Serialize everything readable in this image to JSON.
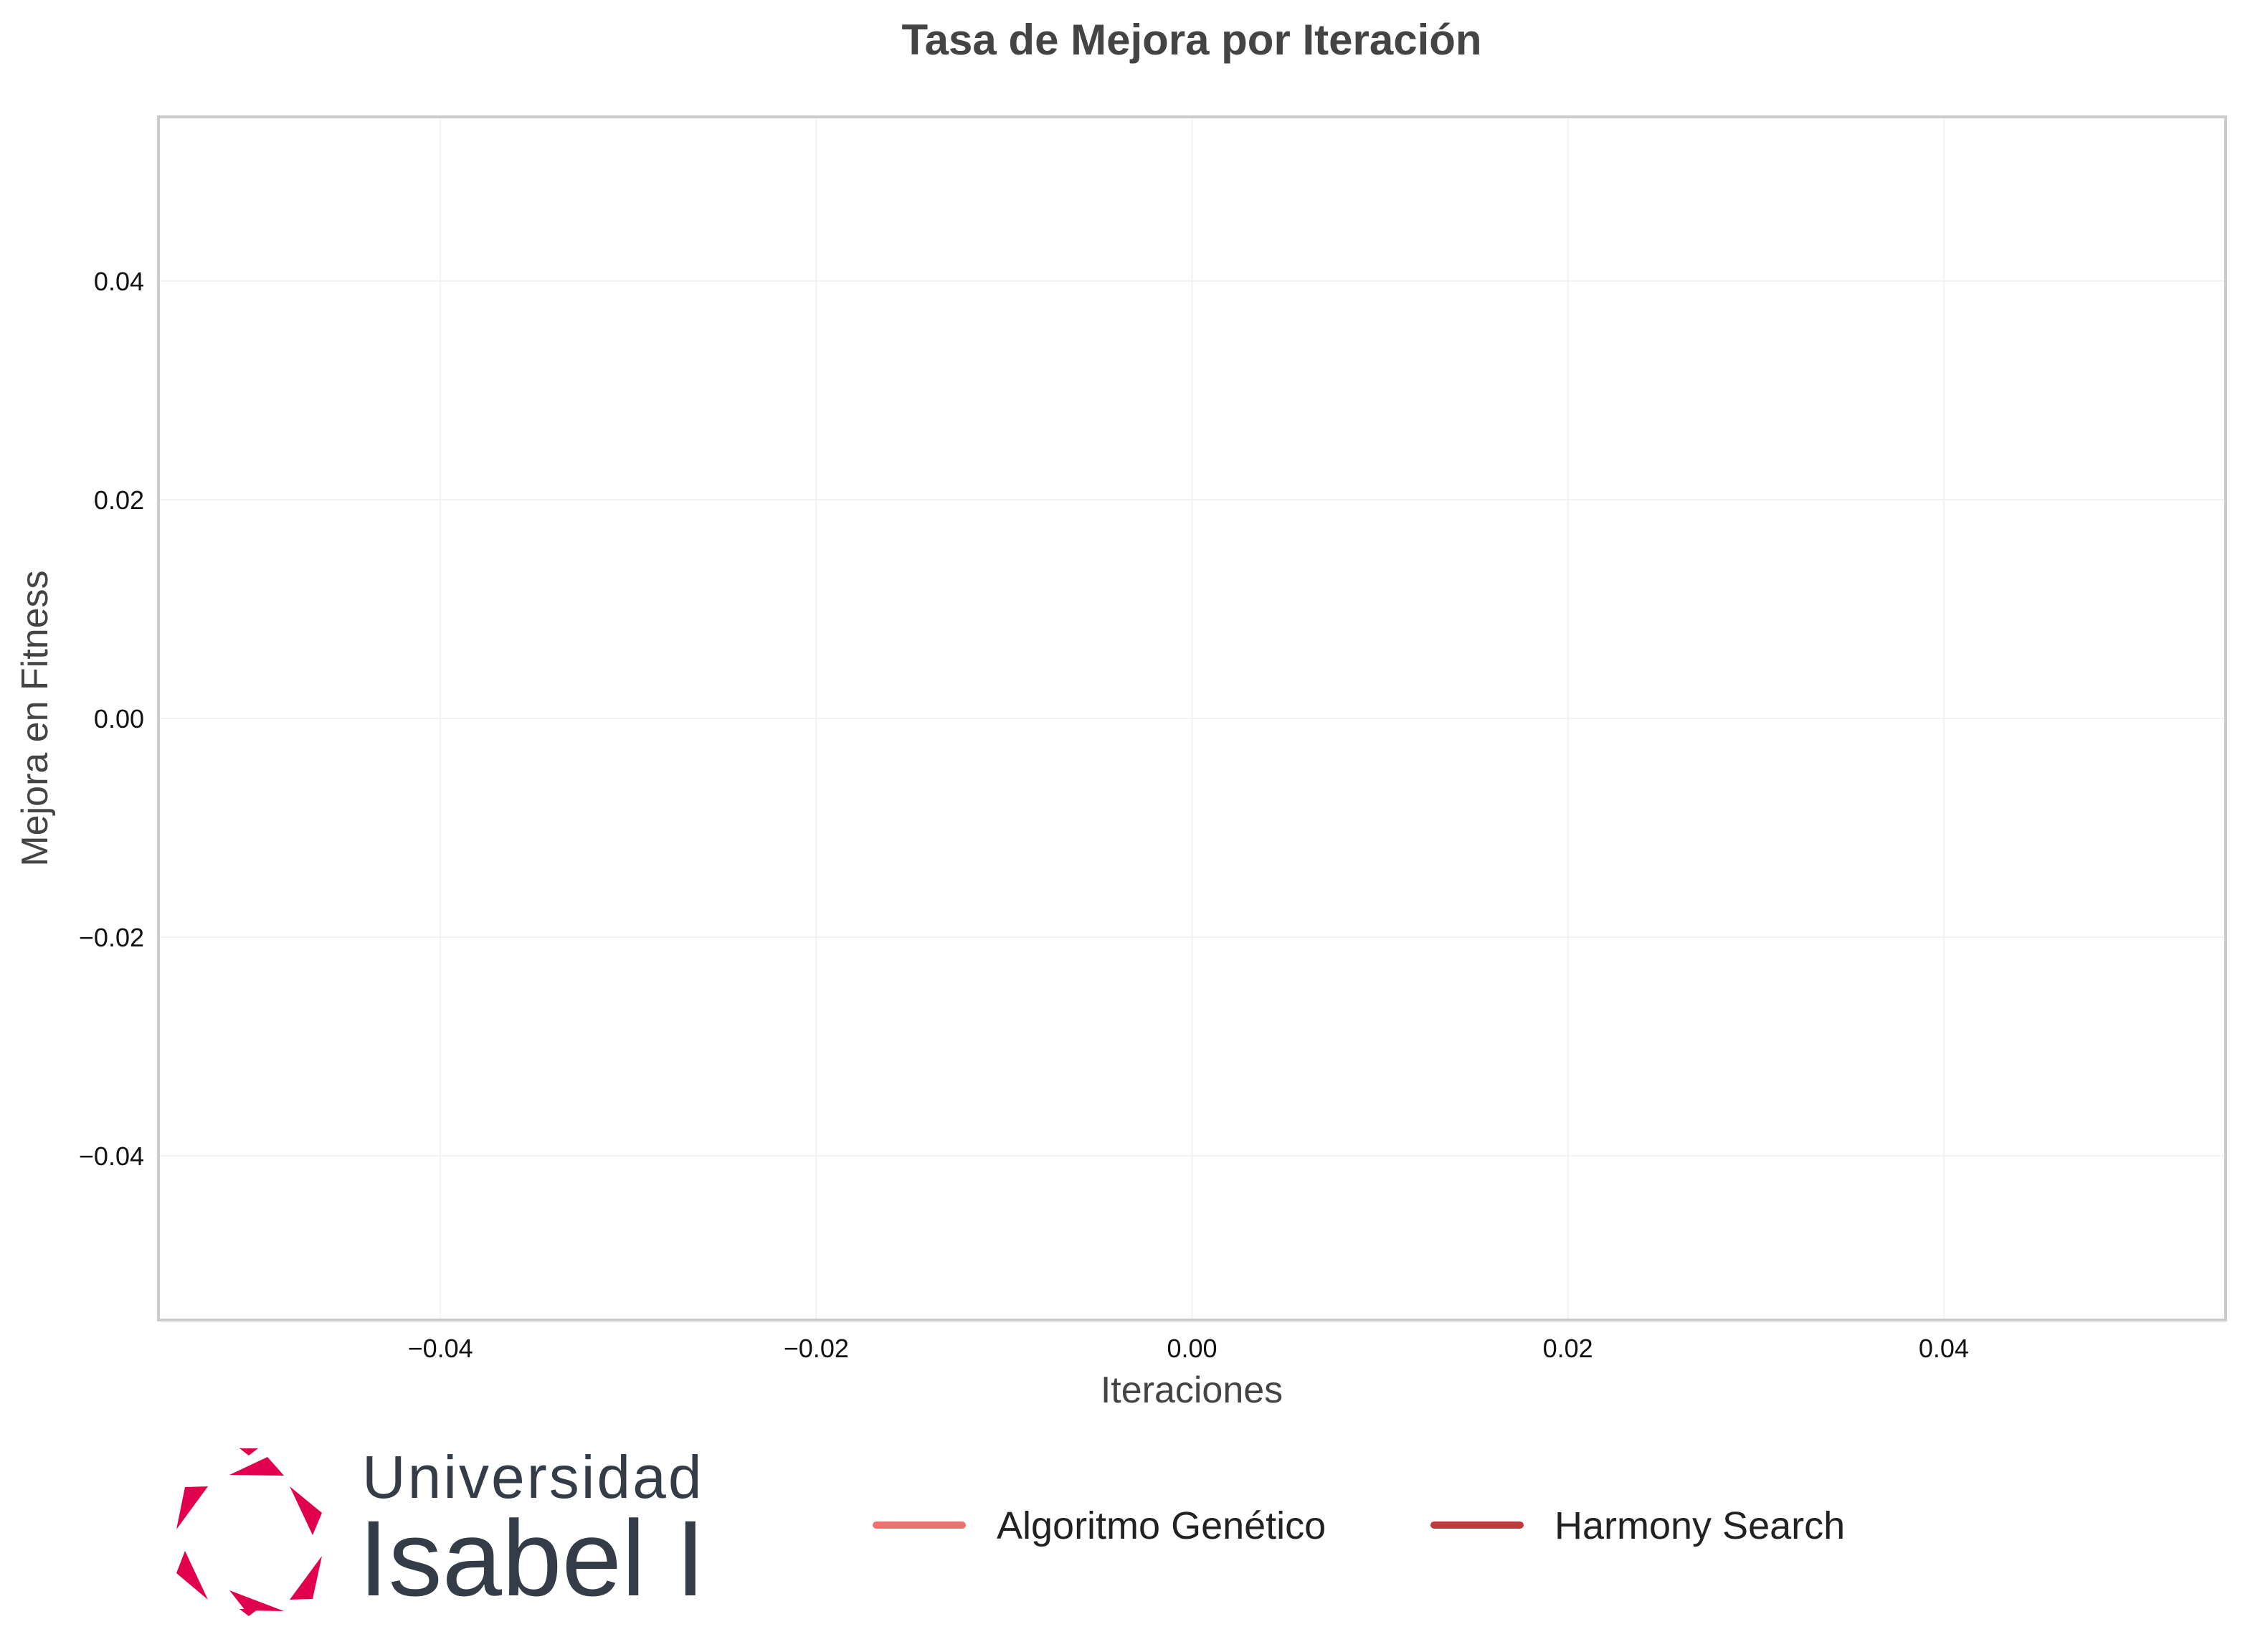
{
  "chart_data": {
    "type": "line",
    "title": "Tasa de Mejora por Iteración",
    "xlabel": "Iteraciones",
    "ylabel": "Mejora en Fitness",
    "xlim": [
      -0.055,
      0.055
    ],
    "ylim": [
      -0.055,
      0.055
    ],
    "x_ticks": [
      -0.04,
      -0.02,
      0.0,
      0.02,
      0.04
    ],
    "x_tick_labels": [
      "−0.04",
      "−0.02",
      "0.00",
      "0.02",
      "0.04"
    ],
    "y_ticks": [
      0.04,
      0.02,
      0.0,
      -0.02,
      -0.04
    ],
    "y_tick_labels": [
      "0.04",
      "0.02",
      "0.00",
      "−0.02",
      "−0.04"
    ],
    "grid": true,
    "legend_position": "bottom",
    "series": [
      {
        "name": "Algoritmo Genético",
        "color": "#f07070",
        "x": [],
        "y": []
      },
      {
        "name": "Harmony Search",
        "color": "#c0393b",
        "x": [],
        "y": []
      }
    ]
  },
  "logo": {
    "line1": "Universidad",
    "line2": "Isabel I",
    "color": "#e0004d",
    "icon": "hexagonal-star-logo-icon"
  }
}
